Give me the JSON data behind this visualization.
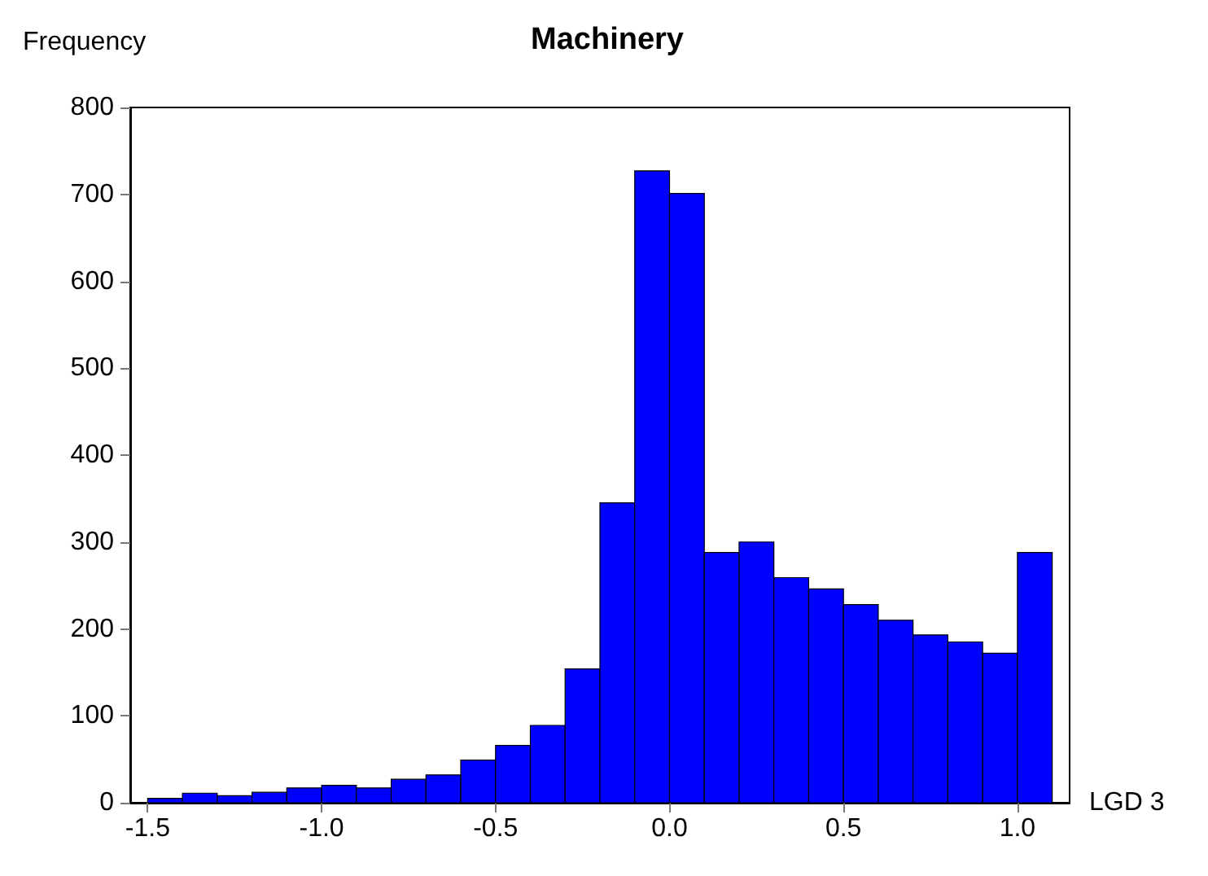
{
  "chart_data": {
    "type": "histogram",
    "title": "Machinery",
    "xlabel": "LGD 3",
    "ylabel": "Frequency",
    "bins": [
      -1.5,
      -1.4,
      -1.3,
      -1.2,
      -1.1,
      -1.0,
      -0.9,
      -0.8,
      -0.7,
      -0.6,
      -0.5,
      -0.4,
      -0.3,
      -0.2,
      -0.1,
      0.0,
      0.1,
      0.2,
      0.3,
      0.4,
      0.5,
      0.6,
      0.7,
      0.8,
      0.9,
      1.0,
      1.1
    ],
    "values": [
      5,
      11,
      8,
      12,
      17,
      20,
      17,
      27,
      32,
      49,
      66,
      89,
      154,
      345,
      727,
      701,
      288,
      300,
      259,
      246,
      228,
      210,
      193,
      185,
      172,
      288
    ],
    "color": "#0000ff",
    "xlim": [
      -1.55,
      1.15
    ],
    "xticks": [
      {
        "value": -1.5,
        "label": "-1.5"
      },
      {
        "value": -1.0,
        "label": "-1.0"
      },
      {
        "value": -0.5,
        "label": "-0.5"
      },
      {
        "value": 0,
        "label": "0.0"
      },
      {
        "value": 0.5,
        "label": "0.5"
      },
      {
        "value": 1.0,
        "label": "1.0"
      }
    ],
    "ylim": [
      0,
      800
    ],
    "yticks": [
      0,
      100,
      200,
      300,
      400,
      500,
      600,
      700,
      800
    ]
  }
}
